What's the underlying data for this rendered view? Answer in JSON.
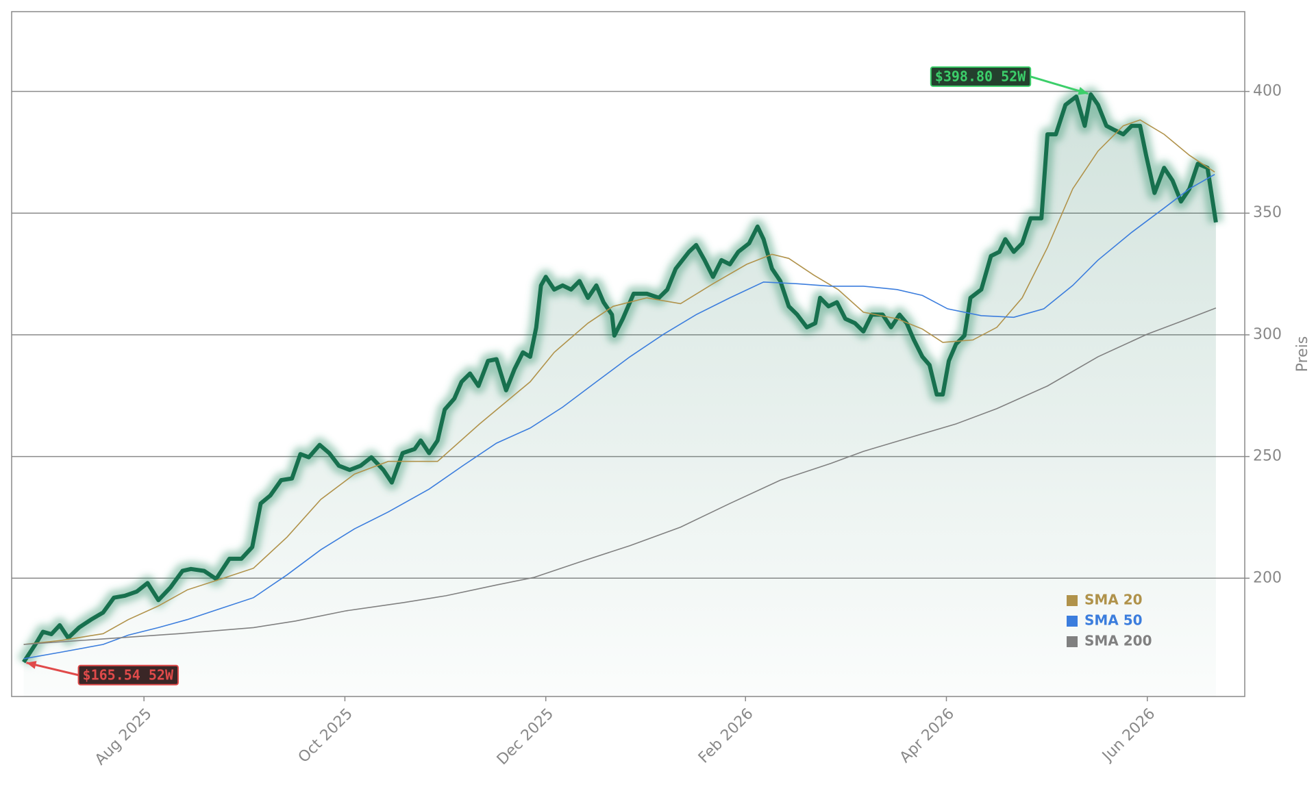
{
  "chart_data": {
    "type": "line",
    "y_label": "Preis",
    "xlim": [
      2025.473,
      2026.498
    ],
    "ylim": [
      151.4,
      432.8
    ],
    "xticks": [
      {
        "value": 2025.583,
        "label": "Aug 2025"
      },
      {
        "value": 2025.75,
        "label": "Oct 2025"
      },
      {
        "value": 2025.917,
        "label": "Dec 2025"
      },
      {
        "value": 2026.083,
        "label": "Feb 2026"
      },
      {
        "value": 2026.25,
        "label": "Apr 2026"
      },
      {
        "value": 2026.417,
        "label": "Jun 2026"
      }
    ],
    "yticks": [
      200,
      250,
      300,
      350,
      400
    ],
    "grid": true,
    "legend": "lower right",
    "series": [
      {
        "color": "#17704e",
        "x": [
          2025.483,
          2025.494,
          2025.499,
          2025.506,
          2025.513,
          2025.52,
          2025.529,
          2025.539,
          2025.549,
          2025.558,
          2025.567,
          2025.577,
          2025.586,
          2025.595,
          2025.605,
          2025.615,
          2025.622,
          2025.633,
          2025.643,
          2025.654,
          2025.664,
          2025.673,
          2025.68,
          2025.688,
          2025.697,
          2025.706,
          2025.713,
          2025.72,
          2025.729,
          2025.737,
          2025.745,
          2025.754,
          2025.763,
          2025.772,
          2025.782,
          2025.789,
          2025.798,
          2025.808,
          2025.813,
          2025.82,
          2025.827,
          2025.833,
          2025.841,
          2025.847,
          2025.854,
          2025.861,
          2025.869,
          2025.876,
          2025.884,
          2025.891,
          2025.898,
          2025.904,
          2025.909,
          2025.913,
          2025.917,
          2025.924,
          2025.931,
          2025.938,
          2025.945,
          2025.952,
          2025.959,
          2025.965,
          2025.972,
          2025.974,
          2025.981,
          2025.99,
          2026.001,
          2026.011,
          2026.018,
          2026.025,
          2026.036,
          2026.042,
          2026.049,
          2026.056,
          2026.063,
          2026.07,
          2026.077,
          2026.086,
          2026.093,
          2026.098,
          2026.105,
          2026.112,
          2026.119,
          2026.126,
          2026.134,
          2026.141,
          2026.145,
          2026.152,
          2026.159,
          2026.166,
          2026.174,
          2026.181,
          2026.188,
          2026.197,
          2026.204,
          2026.211,
          2026.217,
          2026.223,
          2026.23,
          2026.236,
          2026.242,
          2026.247,
          2026.252,
          2026.258,
          2026.265,
          2026.27,
          2026.279,
          2026.287,
          2026.294,
          2026.299,
          2026.306,
          2026.313,
          2026.32,
          2026.329,
          2026.334,
          2026.341,
          2026.349,
          2026.358,
          2026.365,
          2026.37,
          2026.376,
          2026.383,
          2026.39,
          2026.397,
          2026.404,
          2026.411,
          2026.416,
          2026.423,
          2026.431,
          2026.438,
          2026.445,
          2026.452,
          2026.459,
          2026.467,
          2026.474
        ],
        "values": [
          165.54,
          173.8,
          178,
          177,
          180.7,
          175.5,
          179.7,
          183,
          185.9,
          192,
          192.8,
          194.5,
          198,
          191,
          196.2,
          203,
          203.8,
          203,
          199.7,
          208,
          208,
          212.8,
          230.7,
          234,
          240.3,
          241,
          251,
          249.7,
          254.8,
          251.4,
          246.2,
          244.5,
          246.2,
          249.7,
          244.5,
          239.3,
          251.4,
          253.1,
          256.6,
          251.4,
          256.6,
          269.3,
          273.8,
          280.7,
          284.1,
          279,
          289.3,
          290,
          277.2,
          285.9,
          292.8,
          291,
          303,
          320.3,
          323.8,
          318.6,
          320.3,
          318.6,
          322.1,
          315.2,
          320.3,
          313.4,
          308.3,
          299.7,
          306.6,
          316.9,
          316.9,
          315.2,
          318.6,
          327.2,
          334.1,
          336.9,
          330.7,
          323.8,
          330.7,
          329,
          334.1,
          337.6,
          344.5,
          339.3,
          327.2,
          322.1,
          311.7,
          308.3,
          303.1,
          304.8,
          315.2,
          311.7,
          313.4,
          306.6,
          304.8,
          301.4,
          308.3,
          308.3,
          303.1,
          308.3,
          304.8,
          297.9,
          291,
          287.6,
          275.5,
          275.5,
          289.3,
          296.2,
          299.7,
          315.2,
          318.6,
          332.4,
          334.1,
          339.3,
          334.1,
          337.6,
          347.9,
          347.9,
          382.4,
          382.4,
          394.5,
          397.9,
          385.9,
          398.8,
          394.5,
          385.9,
          384.1,
          382.4,
          385.9,
          385.9,
          373.8,
          358.3,
          368.6,
          363.4,
          354.8,
          360,
          370.3,
          368.6,
          346.2
        ]
      },
      {
        "name": "SMA 20",
        "color": "#b0924a",
        "x": [
          2025.483,
          2025.515,
          2025.549,
          2025.57,
          2025.595,
          2025.619,
          2025.647,
          2025.674,
          2025.702,
          2025.73,
          2025.758,
          2025.786,
          2025.827,
          2025.862,
          2025.904,
          2025.924,
          2025.952,
          2025.973,
          2026.001,
          2026.029,
          2026.056,
          2026.084,
          2026.105,
          2026.119,
          2026.14,
          2026.16,
          2026.181,
          2026.209,
          2026.23,
          2026.247,
          2026.272,
          2026.292,
          2026.313,
          2026.334,
          2026.355,
          2026.376,
          2026.397,
          2026.411,
          2026.431,
          2026.452,
          2026.473
        ],
        "values": [
          172.8,
          174.5,
          177.2,
          183,
          188.6,
          195.2,
          199.7,
          204.1,
          216.9,
          232.4,
          242.8,
          248,
          248,
          263.4,
          280.7,
          292.8,
          304.8,
          311.7,
          315.2,
          312.8,
          321,
          329,
          333.1,
          331.4,
          324.5,
          318.6,
          309.3,
          306.6,
          302.4,
          296.9,
          297.9,
          303.1,
          315.2,
          335.9,
          360,
          375.5,
          385.9,
          388.3,
          382.4,
          373.8,
          366.9
        ]
      },
      {
        "name": "SMA 50",
        "color": "#3b7ddd",
        "x": [
          2025.483,
          2025.515,
          2025.549,
          2025.57,
          2025.595,
          2025.619,
          2025.647,
          2025.674,
          2025.702,
          2025.73,
          2025.758,
          2025.786,
          2025.82,
          2025.848,
          2025.876,
          2025.904,
          2025.931,
          2025.959,
          2025.987,
          2026.015,
          2026.042,
          2026.07,
          2026.098,
          2026.126,
          2026.154,
          2026.181,
          2026.209,
          2026.23,
          2026.251,
          2026.279,
          2026.306,
          2026.331,
          2026.355,
          2026.376,
          2026.404,
          2026.431,
          2026.452,
          2026.473
        ],
        "values": [
          166.9,
          169.7,
          172.8,
          176.6,
          179.7,
          183,
          187.6,
          192,
          201.4,
          211.7,
          220.3,
          227.2,
          236.6,
          246.2,
          255.5,
          261.7,
          270.3,
          280.7,
          291,
          300.3,
          308.3,
          315.2,
          321.7,
          321,
          320,
          320,
          318.6,
          316.2,
          310.7,
          307.9,
          307.2,
          310.7,
          320.3,
          330.7,
          342.1,
          352.1,
          360,
          365.9
        ]
      },
      {
        "name": "SMA 200",
        "color": "#808080",
        "x": [
          2025.483,
          2025.542,
          2025.612,
          2025.674,
          2025.709,
          2025.751,
          2025.799,
          2025.834,
          2025.876,
          2025.907,
          2025.945,
          2025.987,
          2026.029,
          2026.07,
          2026.112,
          2026.154,
          2026.181,
          2026.223,
          2026.258,
          2026.292,
          2026.334,
          2026.376,
          2026.417,
          2026.445,
          2026.474
        ],
        "values": [
          172.8,
          174.8,
          177.2,
          179.7,
          182.4,
          186.6,
          190,
          192.8,
          197.2,
          200.3,
          206.6,
          213.4,
          221,
          230.7,
          240.3,
          247.2,
          252.1,
          258.3,
          263.4,
          269.7,
          279,
          291,
          300.3,
          305.5,
          311
        ]
      }
    ],
    "annotations": [
      {
        "text": "$398.80 52W",
        "x": 2026.37,
        "y": 398.8,
        "color": "#3ccf6a",
        "background": "#24402e"
      },
      {
        "text": "$165.54 52W",
        "x": 2025.483,
        "y": 165.54,
        "color": "#e04a4a",
        "background": "#3a2626"
      }
    ]
  }
}
